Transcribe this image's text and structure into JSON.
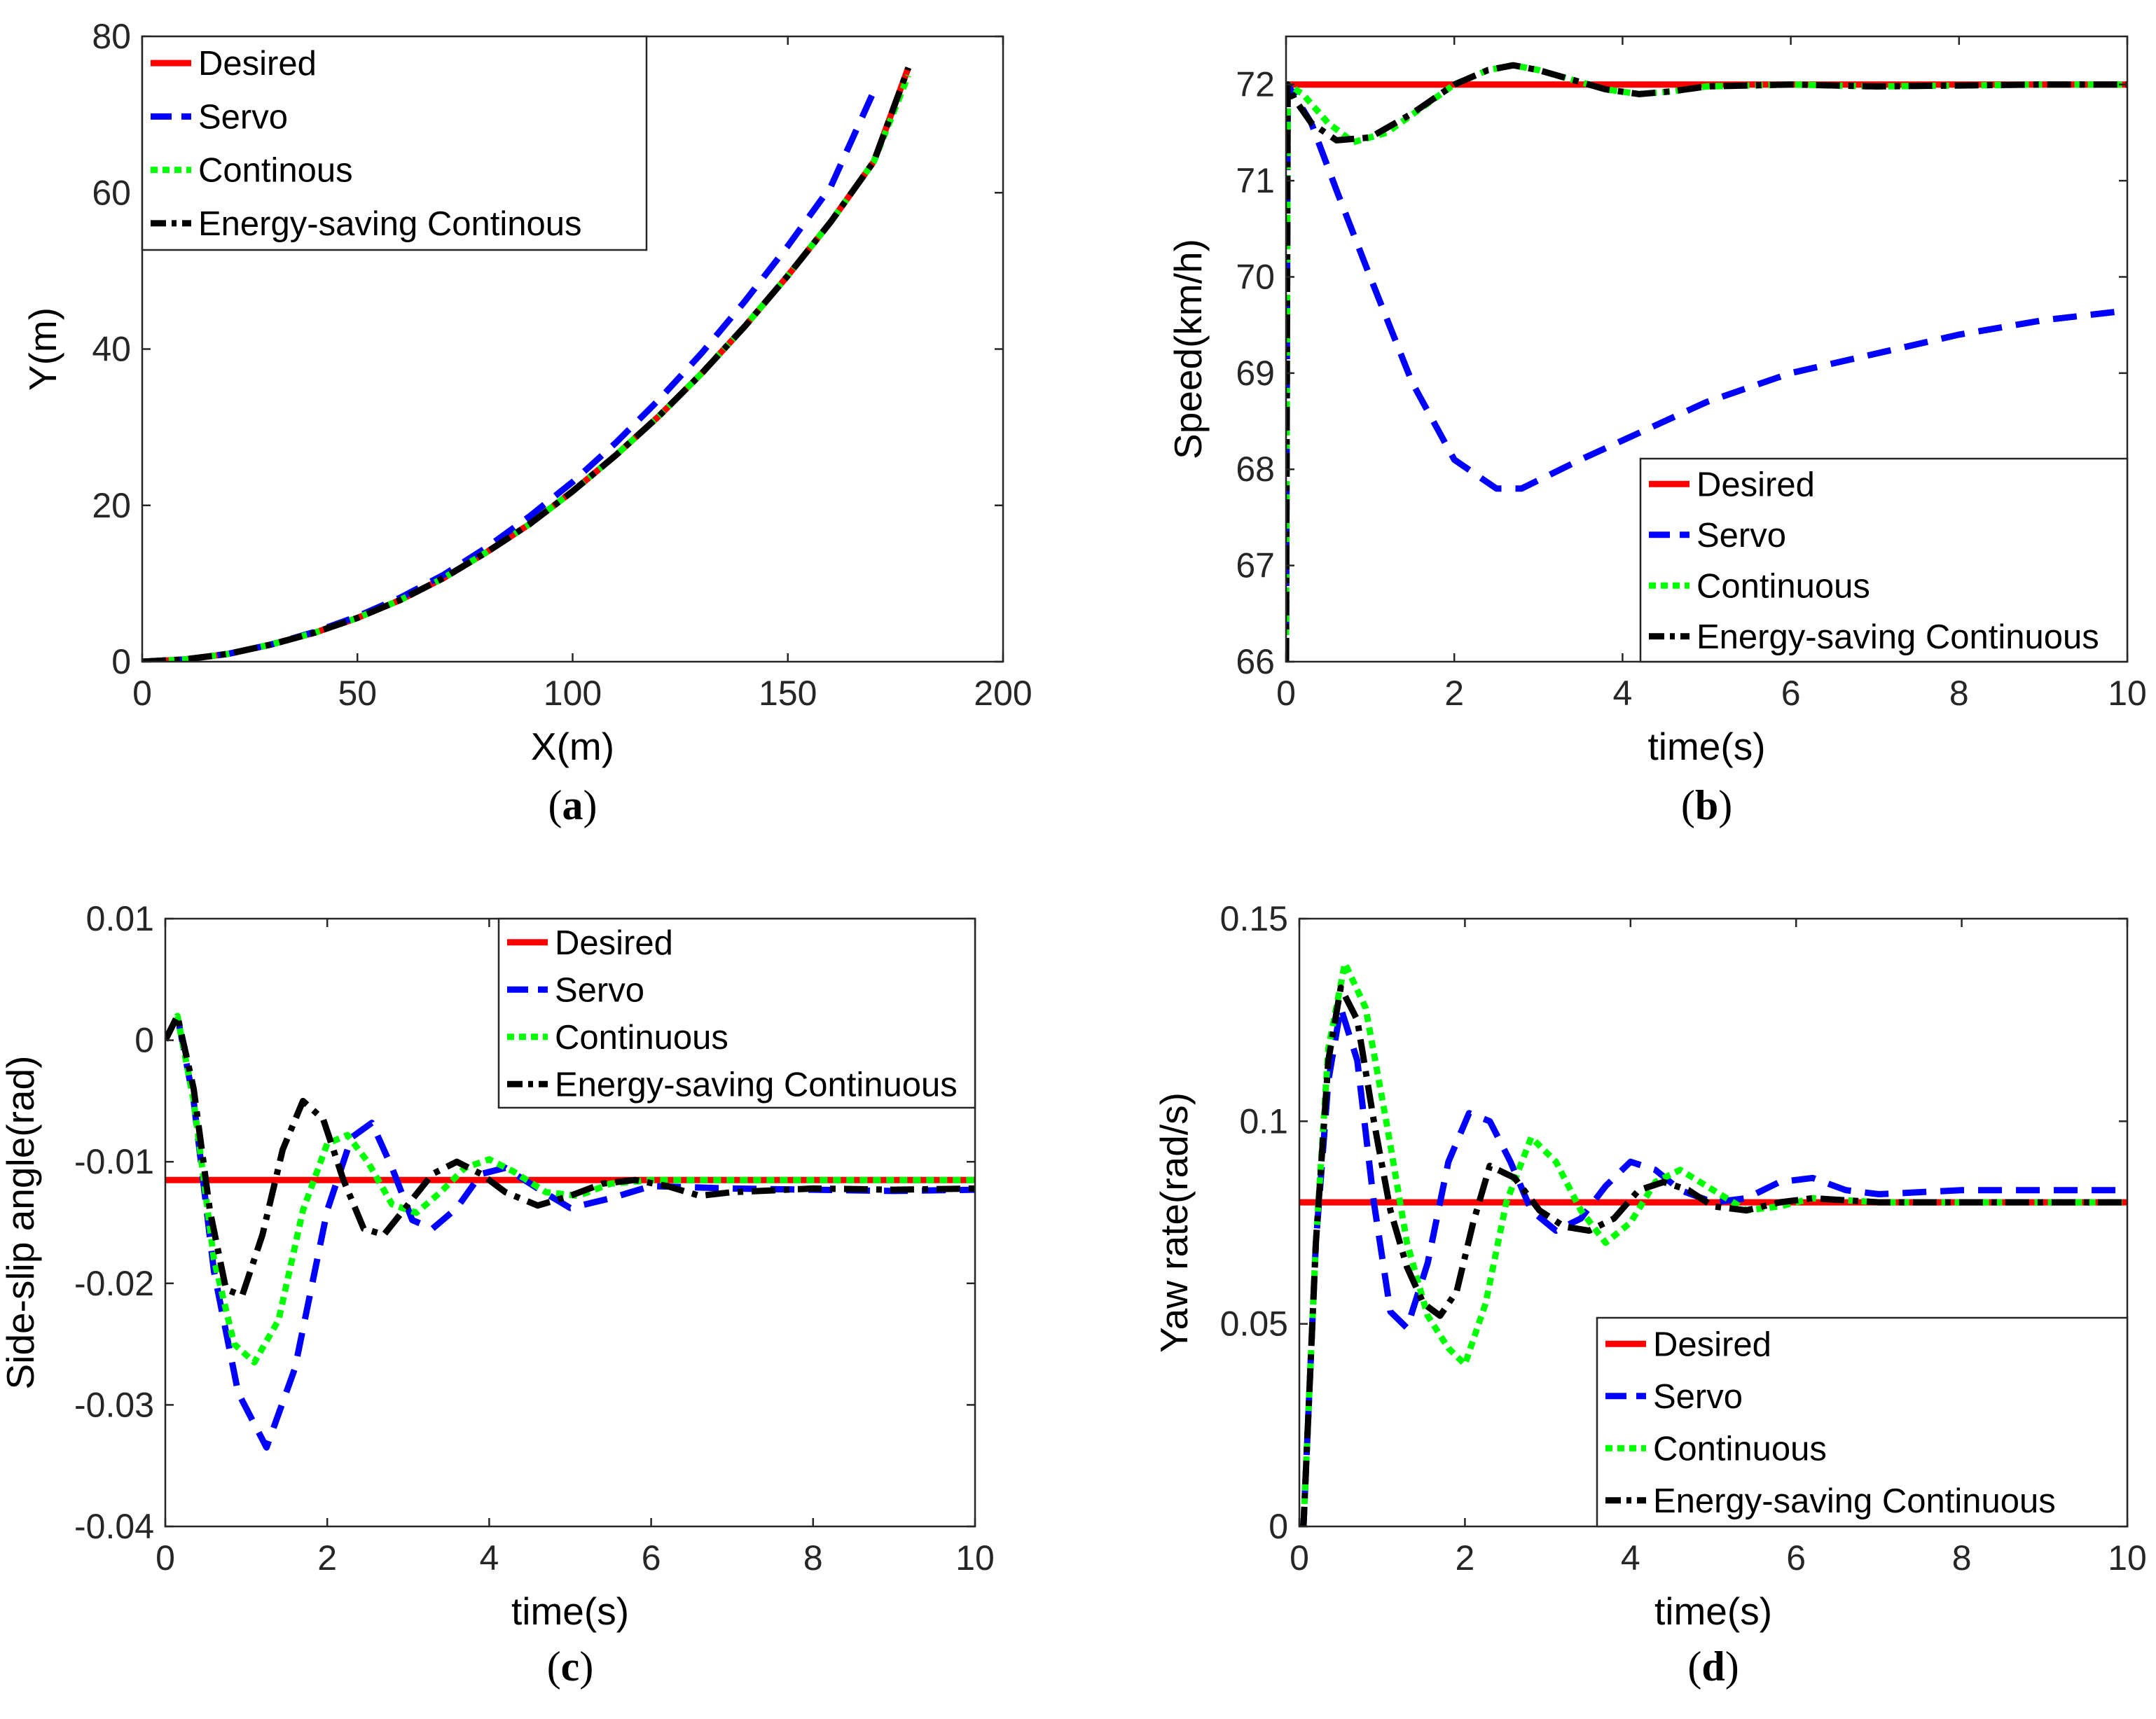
{
  "chart_data": [
    {
      "type": "line",
      "caption_letter": "a",
      "xlabel": "X(m)",
      "ylabel": "Y(m)",
      "xlim": [
        0,
        200
      ],
      "ylim": [
        0,
        80
      ],
      "xticks": [
        0,
        50,
        100,
        150,
        200
      ],
      "yticks": [
        0,
        20,
        40,
        60,
        80
      ],
      "legend_position": "top-left",
      "series": [
        {
          "name": "Desired",
          "color": "#ff0000",
          "style": "solid",
          "x": [
            0,
            10,
            20,
            30,
            40,
            50,
            60,
            70,
            80,
            90,
            100,
            110,
            120,
            130,
            140,
            150,
            160,
            170,
            178
          ],
          "y": [
            0,
            0.3,
            1.0,
            2.2,
            3.7,
            5.6,
            7.9,
            10.7,
            14.0,
            17.6,
            21.8,
            26.4,
            31.4,
            36.9,
            42.9,
            49.4,
            56.3,
            64.0,
            76.0
          ]
        },
        {
          "name": "Servo",
          "color": "#0000ff",
          "style": "dashed",
          "x": [
            0,
            10,
            20,
            30,
            40,
            50,
            60,
            70,
            80,
            90,
            100,
            110,
            120,
            130,
            140,
            150,
            160,
            170
          ],
          "y": [
            0,
            0.3,
            1.0,
            2.2,
            3.8,
            5.8,
            8.2,
            11.1,
            14.6,
            18.6,
            23.0,
            28.0,
            33.5,
            39.5,
            46.1,
            53.2,
            60.8,
            73.0
          ]
        },
        {
          "name": "Continous",
          "color": "#00ff00",
          "style": "dotted",
          "x": [
            0,
            10,
            20,
            30,
            40,
            50,
            60,
            70,
            80,
            90,
            100,
            110,
            120,
            130,
            140,
            150,
            160,
            170,
            178
          ],
          "y": [
            0,
            0.3,
            1.0,
            2.2,
            3.7,
            5.6,
            7.9,
            10.7,
            14.0,
            17.6,
            21.8,
            26.4,
            31.4,
            36.9,
            42.9,
            49.4,
            56.3,
            64.0,
            75.0
          ]
        },
        {
          "name": "Energy-saving Continous",
          "color": "#000000",
          "style": "dashdot",
          "x": [
            0,
            10,
            20,
            30,
            40,
            50,
            60,
            70,
            80,
            90,
            100,
            110,
            120,
            130,
            140,
            150,
            160,
            170,
            178
          ],
          "y": [
            0,
            0.3,
            1.0,
            2.2,
            3.7,
            5.6,
            7.9,
            10.7,
            14.0,
            17.6,
            21.8,
            26.4,
            31.4,
            36.9,
            42.9,
            49.4,
            56.3,
            64.0,
            76.0
          ]
        }
      ]
    },
    {
      "type": "line",
      "caption_letter": "b",
      "xlabel": "time(s)",
      "ylabel": "Speed(km/h)",
      "xlim": [
        0,
        10
      ],
      "ylim": [
        66,
        72.5
      ],
      "xticks": [
        0,
        2,
        4,
        6,
        8,
        10
      ],
      "yticks": [
        66,
        67,
        68,
        69,
        70,
        71,
        72
      ],
      "legend_position": "bottom-right",
      "series": [
        {
          "name": "Desired",
          "color": "#ff0000",
          "style": "solid",
          "x": [
            0,
            10
          ],
          "y": [
            72,
            72
          ]
        },
        {
          "name": "Servo",
          "color": "#0000ff",
          "style": "dashed",
          "x": [
            0,
            0.02,
            0.3,
            0.6,
            1.0,
            1.5,
            2.0,
            2.5,
            2.8,
            3.5,
            4.0,
            5.0,
            6.0,
            7.0,
            8.0,
            9.0,
            10.0
          ],
          "y": [
            66,
            72,
            71.6,
            70.9,
            70.0,
            68.9,
            68.1,
            67.8,
            67.8,
            68.1,
            68.3,
            68.7,
            69.0,
            69.2,
            69.4,
            69.55,
            69.65
          ]
        },
        {
          "name": "Continuous",
          "color": "#00ff00",
          "style": "dotted",
          "x": [
            0,
            0.02,
            0.2,
            0.5,
            0.8,
            1.2,
            1.6,
            2.0,
            2.4,
            2.7,
            3.0,
            3.4,
            3.8,
            4.2,
            4.6,
            5.0,
            6.0,
            7.0,
            8.0,
            9.0,
            10.0
          ],
          "y": [
            66,
            72,
            71.9,
            71.6,
            71.4,
            71.5,
            71.75,
            72.0,
            72.15,
            72.2,
            72.15,
            72.05,
            71.95,
            71.9,
            71.93,
            71.98,
            72.0,
            71.98,
            71.99,
            72.0,
            72.0
          ]
        },
        {
          "name": "Energy-saving Continuous",
          "color": "#000000",
          "style": "dashdot",
          "x": [
            0,
            0.02,
            0.1,
            0.3,
            0.6,
            1.0,
            1.5,
            2.0,
            2.4,
            2.7,
            3.0,
            3.4,
            3.8,
            4.2,
            4.6,
            5.0,
            6.0,
            7.0,
            8.0,
            9.0,
            10.0
          ],
          "y": [
            66,
            72,
            71.85,
            71.6,
            71.42,
            71.45,
            71.7,
            72.0,
            72.15,
            72.2,
            72.15,
            72.05,
            71.95,
            71.9,
            71.93,
            71.98,
            72.0,
            71.98,
            71.99,
            72.0,
            72.0
          ]
        }
      ]
    },
    {
      "type": "line",
      "caption_letter": "c",
      "xlabel": "time(s)",
      "ylabel": "Side-slip angle(rad)",
      "xlim": [
        0,
        10
      ],
      "ylim": [
        -0.04,
        0.01
      ],
      "xticks": [
        0,
        2,
        4,
        6,
        8,
        10
      ],
      "yticks": [
        -0.04,
        -0.03,
        -0.02,
        -0.01,
        0,
        0.01
      ],
      "ytick_labels": [
        "-0.04",
        "-0.03",
        "-0.02",
        "-0.01",
        "0",
        "0.01"
      ],
      "legend_position": "top-right",
      "series": [
        {
          "name": "Desired",
          "color": "#ff0000",
          "style": "solid",
          "x": [
            0,
            10
          ],
          "y": [
            -0.0115,
            -0.0115
          ]
        },
        {
          "name": "Servo",
          "color": "#0000ff",
          "style": "dashed",
          "x": [
            0,
            0.15,
            0.35,
            0.6,
            0.9,
            1.25,
            1.6,
            2.0,
            2.3,
            2.55,
            2.8,
            3.05,
            3.3,
            3.6,
            3.9,
            4.2,
            4.6,
            5.0,
            5.5,
            6.0,
            7.0,
            8.0,
            9.0,
            10.0
          ],
          "y": [
            0,
            0.002,
            -0.005,
            -0.019,
            -0.029,
            -0.0335,
            -0.027,
            -0.014,
            -0.008,
            -0.0068,
            -0.0105,
            -0.0148,
            -0.0155,
            -0.0138,
            -0.011,
            -0.0105,
            -0.0122,
            -0.0138,
            -0.013,
            -0.012,
            -0.0122,
            -0.0123,
            -0.0124,
            -0.0123
          ]
        },
        {
          "name": "Continuous",
          "color": "#00ff00",
          "style": "dotted",
          "x": [
            0,
            0.15,
            0.35,
            0.6,
            0.85,
            1.1,
            1.4,
            1.7,
            2.0,
            2.25,
            2.5,
            2.8,
            3.1,
            3.4,
            3.7,
            4.0,
            4.3,
            4.7,
            5.1,
            5.5,
            6.0,
            7.0,
            8.0,
            9.0,
            10.0
          ],
          "y": [
            0,
            0.002,
            -0.005,
            -0.018,
            -0.025,
            -0.0265,
            -0.023,
            -0.014,
            -0.0085,
            -0.0078,
            -0.01,
            -0.0135,
            -0.0142,
            -0.0125,
            -0.0105,
            -0.0098,
            -0.0108,
            -0.0125,
            -0.0128,
            -0.0118,
            -0.0115,
            -0.0115,
            -0.0115,
            -0.0115,
            -0.0115
          ]
        },
        {
          "name": "Energy-saving Continuous",
          "color": "#000000",
          "style": "dashdot",
          "x": [
            0,
            0.15,
            0.35,
            0.55,
            0.75,
            0.95,
            1.2,
            1.45,
            1.7,
            1.95,
            2.2,
            2.45,
            2.7,
            3.0,
            3.3,
            3.6,
            3.9,
            4.2,
            4.6,
            5.0,
            5.4,
            5.8,
            6.2,
            6.6,
            7.0,
            8.0,
            9.0,
            10.0
          ],
          "y": [
            0,
            0.002,
            -0.004,
            -0.014,
            -0.0205,
            -0.021,
            -0.016,
            -0.009,
            -0.005,
            -0.0065,
            -0.0115,
            -0.0155,
            -0.016,
            -0.0135,
            -0.011,
            -0.01,
            -0.011,
            -0.0125,
            -0.0136,
            -0.0128,
            -0.0118,
            -0.0115,
            -0.012,
            -0.0128,
            -0.0125,
            -0.0122,
            -0.0123,
            -0.0122
          ]
        }
      ]
    },
    {
      "type": "line",
      "caption_letter": "d",
      "xlabel": "time(s)",
      "ylabel": "Yaw rate(rad/s)",
      "xlim": [
        0,
        10
      ],
      "ylim": [
        0,
        0.15
      ],
      "xticks": [
        0,
        2,
        4,
        6,
        8,
        10
      ],
      "yticks": [
        0,
        0.05,
        0.1,
        0.15
      ],
      "ytick_labels": [
        "0",
        "0.05",
        "0.1",
        "0.15"
      ],
      "legend_position": "bottom-right",
      "series": [
        {
          "name": "Desired",
          "color": "#ff0000",
          "style": "solid",
          "x": [
            0,
            10
          ],
          "y": [
            0.08,
            0.08
          ]
        },
        {
          "name": "Servo",
          "color": "#0000ff",
          "style": "dashed",
          "x": [
            0,
            0.05,
            0.2,
            0.35,
            0.5,
            0.7,
            0.9,
            1.1,
            1.3,
            1.55,
            1.8,
            2.05,
            2.3,
            2.55,
            2.8,
            3.1,
            3.4,
            3.7,
            4.0,
            4.3,
            4.6,
            5.0,
            5.4,
            5.8,
            6.2,
            6.6,
            7.0,
            8.0,
            9.0,
            10.0
          ],
          "y": [
            0,
            0.0,
            0.07,
            0.11,
            0.128,
            0.115,
            0.08,
            0.053,
            0.049,
            0.065,
            0.09,
            0.102,
            0.1,
            0.09,
            0.078,
            0.073,
            0.076,
            0.084,
            0.09,
            0.088,
            0.083,
            0.08,
            0.081,
            0.085,
            0.086,
            0.083,
            0.082,
            0.083,
            0.083,
            0.083
          ]
        },
        {
          "name": "Continuous",
          "color": "#00ff00",
          "style": "dotted",
          "x": [
            0,
            0.05,
            0.2,
            0.35,
            0.55,
            0.8,
            1.05,
            1.3,
            1.55,
            1.8,
            2.0,
            2.25,
            2.5,
            2.8,
            3.1,
            3.4,
            3.7,
            4.0,
            4.3,
            4.6,
            5.0,
            5.4,
            5.8,
            6.2,
            7.0,
            8.0,
            9.0,
            10.0
          ],
          "y": [
            0,
            0.0,
            0.07,
            0.118,
            0.139,
            0.128,
            0.1,
            0.07,
            0.052,
            0.044,
            0.04,
            0.055,
            0.08,
            0.096,
            0.09,
            0.078,
            0.07,
            0.075,
            0.085,
            0.088,
            0.083,
            0.078,
            0.079,
            0.081,
            0.08,
            0.08,
            0.08,
            0.08
          ]
        },
        {
          "name": "Energy-saving Continuous",
          "color": "#000000",
          "style": "dashdot",
          "x": [
            0,
            0.05,
            0.2,
            0.35,
            0.5,
            0.7,
            0.9,
            1.1,
            1.3,
            1.5,
            1.7,
            1.9,
            2.1,
            2.3,
            2.6,
            2.9,
            3.2,
            3.5,
            3.8,
            4.1,
            4.4,
            4.7,
            5.0,
            5.4,
            5.8,
            6.2,
            7.0,
            8.0,
            9.0,
            10.0
          ],
          "y": [
            0,
            0.0,
            0.07,
            0.115,
            0.133,
            0.125,
            0.1,
            0.078,
            0.064,
            0.055,
            0.052,
            0.058,
            0.075,
            0.089,
            0.086,
            0.078,
            0.074,
            0.073,
            0.076,
            0.083,
            0.085,
            0.083,
            0.079,
            0.078,
            0.08,
            0.081,
            0.08,
            0.08,
            0.08,
            0.08
          ]
        }
      ]
    }
  ]
}
